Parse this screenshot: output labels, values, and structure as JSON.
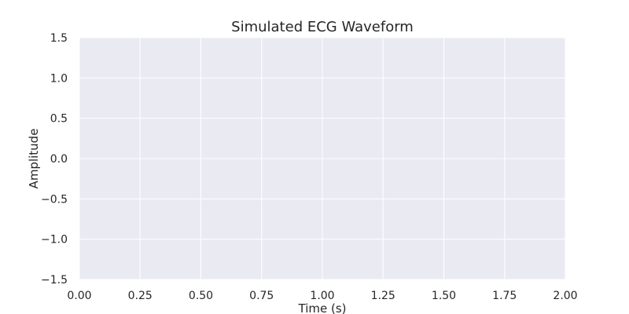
{
  "chart_data": {
    "type": "line",
    "title": "Simulated ECG Waveform",
    "xlabel": "Time (s)",
    "ylabel": "Amplitude",
    "xlim": [
      0,
      2
    ],
    "ylim": [
      -1.5,
      1.5
    ],
    "xticks": [
      0,
      0.25,
      0.5,
      0.75,
      1,
      1.25,
      1.5,
      1.75,
      2
    ],
    "xtick_labels": [
      "0.00",
      "0.25",
      "0.50",
      "0.75",
      "1.00",
      "1.25",
      "1.50",
      "1.75",
      "2.00"
    ],
    "yticks": [
      -1.5,
      -1,
      -0.5,
      0,
      0.5,
      1,
      1.5
    ],
    "ytick_labels": [
      "−1.5",
      "−1.0",
      "−0.5",
      "0.0",
      "0.5",
      "1.0",
      "1.5"
    ],
    "grid": true,
    "series": [],
    "colors": {
      "plot_background": "#eaeaf2",
      "grid": "#ffffff",
      "text": "#262626"
    }
  }
}
